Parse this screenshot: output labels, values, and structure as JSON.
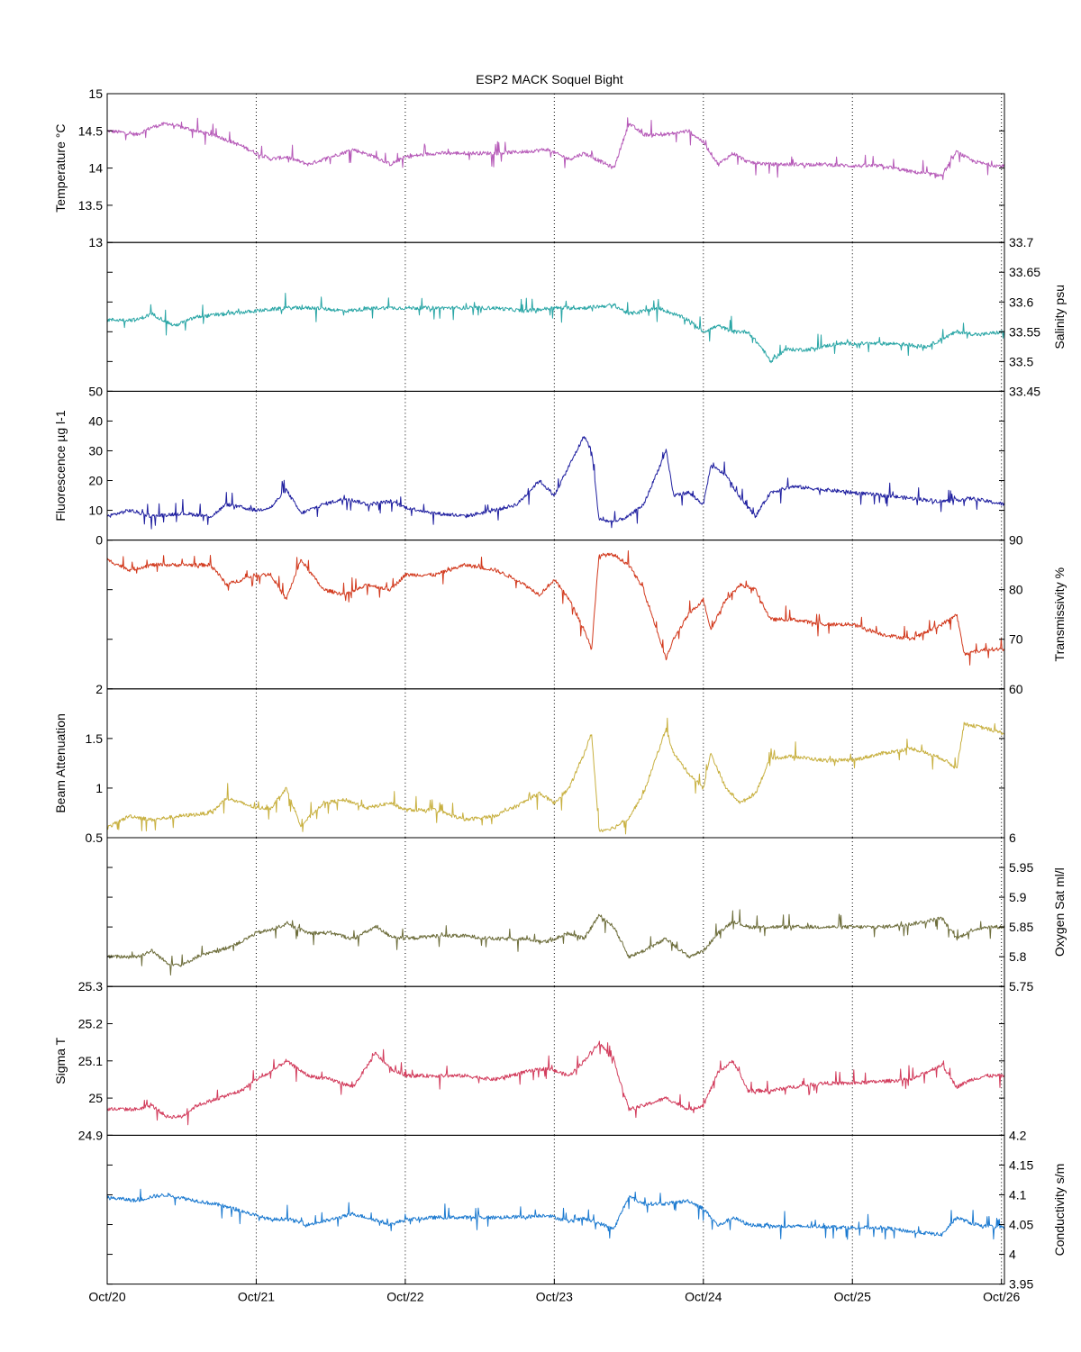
{
  "chart_data": {
    "type": "line",
    "title": "ESP2 MACK  Soquel Bight",
    "x_tick_labels": [
      "Oct/20",
      "Oct/21",
      "Oct/22",
      "Oct/23",
      "Oct/24",
      "Oct/25",
      "Oct/26"
    ],
    "x_ticks": [
      0,
      1,
      2,
      3,
      4,
      5,
      6
    ],
    "xlim": [
      0,
      6.02
    ],
    "x_unit_note": "days from Oct/20 00:00",
    "grid": "vertical dotted at daily ticks",
    "panels": [
      {
        "ylabel": "Temperature °C",
        "axis_side": "left",
        "ylim": [
          13,
          15
        ],
        "ticks": [
          "13",
          "13.5",
          "14",
          "14.5",
          "15"
        ],
        "tick_values": [
          13,
          13.5,
          14,
          14.5,
          15
        ],
        "color": "#b65ab8",
        "series": {
          "x": [
            0,
            0.1,
            0.2,
            0.3,
            0.4,
            0.5,
            0.6,
            0.75,
            0.9,
            1.0,
            1.1,
            1.2,
            1.35,
            1.5,
            1.65,
            1.8,
            1.9,
            2.0,
            2.2,
            2.4,
            2.6,
            2.8,
            2.95,
            3.1,
            3.2,
            3.3,
            3.4,
            3.5,
            3.6,
            3.75,
            3.9,
            4.0,
            4.1,
            4.2,
            4.3,
            4.45,
            4.6,
            4.8,
            5.0,
            5.2,
            5.4,
            5.6,
            5.7,
            5.8,
            5.9,
            6.02
          ],
          "y": [
            14.5,
            14.48,
            14.45,
            14.55,
            14.6,
            14.55,
            14.5,
            14.42,
            14.3,
            14.2,
            14.12,
            14.15,
            14.05,
            14.15,
            14.25,
            14.15,
            14.05,
            14.15,
            14.2,
            14.2,
            14.2,
            14.22,
            14.25,
            14.12,
            14.2,
            14.1,
            14.0,
            14.6,
            14.45,
            14.45,
            14.5,
            14.35,
            14.05,
            14.2,
            14.08,
            14.05,
            14.05,
            14.05,
            14.03,
            14.03,
            13.95,
            13.9,
            14.22,
            14.1,
            14.05,
            14.02
          ]
        }
      },
      {
        "ylabel": "Salinity psu",
        "axis_side": "right",
        "ylim": [
          33.45,
          33.7
        ],
        "ticks": [
          "33.45",
          "33.5",
          "33.55",
          "33.6",
          "33.65",
          "33.7"
        ],
        "tick_values": [
          33.45,
          33.5,
          33.55,
          33.6,
          33.65,
          33.7
        ],
        "color": "#2aa6a6",
        "series": {
          "x": [
            0,
            0.2,
            0.3,
            0.45,
            0.6,
            0.8,
            1.0,
            1.2,
            1.4,
            1.6,
            1.8,
            2.0,
            2.2,
            2.4,
            2.6,
            2.8,
            3.0,
            3.2,
            3.4,
            3.5,
            3.6,
            3.7,
            3.8,
            3.9,
            4.0,
            4.1,
            4.2,
            4.3,
            4.4,
            4.45,
            4.55,
            4.7,
            4.9,
            5.1,
            5.3,
            5.5,
            5.7,
            5.85,
            6.02
          ],
          "y": [
            33.57,
            33.57,
            33.58,
            33.56,
            33.575,
            33.58,
            33.585,
            33.59,
            33.59,
            33.585,
            33.59,
            33.59,
            33.59,
            33.59,
            33.59,
            33.585,
            33.59,
            33.59,
            33.595,
            33.58,
            33.585,
            33.59,
            33.58,
            33.57,
            33.55,
            33.56,
            33.55,
            33.55,
            33.52,
            33.5,
            33.52,
            33.52,
            33.53,
            33.53,
            33.53,
            33.525,
            33.55,
            33.545,
            33.55
          ]
        }
      },
      {
        "ylabel": "Fluorescence µg l-1",
        "axis_side": "left",
        "ylim": [
          0,
          50
        ],
        "ticks": [
          "0",
          "10",
          "20",
          "30",
          "40",
          "50"
        ],
        "tick_values": [
          0,
          10,
          20,
          30,
          40,
          50
        ],
        "color": "#2020a0",
        "series": {
          "x": [
            0,
            0.15,
            0.3,
            0.5,
            0.7,
            0.8,
            1.0,
            1.1,
            1.2,
            1.3,
            1.45,
            1.6,
            1.75,
            1.9,
            2.0,
            2.2,
            2.4,
            2.6,
            2.75,
            2.9,
            3.0,
            3.1,
            3.2,
            3.25,
            3.3,
            3.4,
            3.5,
            3.6,
            3.75,
            3.8,
            3.9,
            4.0,
            4.05,
            4.15,
            4.25,
            4.35,
            4.45,
            4.6,
            4.8,
            5.0,
            5.2,
            5.4,
            5.6,
            5.8,
            6.02
          ],
          "y": [
            8,
            10,
            8,
            9,
            8,
            12,
            10,
            11,
            17,
            9,
            12,
            14,
            12,
            13,
            11,
            9,
            8,
            10,
            12,
            20,
            15,
            25,
            35,
            30,
            7,
            6,
            8,
            12,
            30,
            15,
            16,
            12,
            25,
            22,
            14,
            8,
            16,
            18,
            17,
            16,
            15,
            14,
            13,
            14,
            12
          ]
        }
      },
      {
        "ylabel": "Transmissivity %",
        "axis_side": "right",
        "ylim": [
          60,
          90
        ],
        "ticks": [
          "60",
          "70",
          "80",
          "90"
        ],
        "tick_values": [
          60,
          70,
          80,
          90
        ],
        "color": "#d23a1e",
        "series": {
          "x": [
            0,
            0.15,
            0.3,
            0.5,
            0.7,
            0.8,
            1.0,
            1.1,
            1.2,
            1.3,
            1.45,
            1.6,
            1.75,
            1.9,
            2.0,
            2.2,
            2.4,
            2.6,
            2.75,
            2.9,
            3.0,
            3.1,
            3.2,
            3.25,
            3.3,
            3.4,
            3.5,
            3.6,
            3.75,
            3.8,
            3.9,
            4.0,
            4.05,
            4.15,
            4.25,
            4.35,
            4.45,
            4.6,
            4.8,
            5.0,
            5.2,
            5.4,
            5.6,
            5.7,
            5.75,
            5.9,
            6.02
          ],
          "y": [
            86,
            84,
            85,
            85,
            85,
            81,
            83,
            83,
            78,
            86,
            80,
            79,
            81,
            80,
            83,
            83,
            85,
            84,
            82,
            79,
            82,
            78,
            72,
            68,
            87,
            87,
            85,
            80,
            66,
            70,
            75,
            78,
            72,
            78,
            81,
            80,
            74,
            74,
            73,
            73,
            71,
            70,
            73,
            75,
            67,
            68,
            68
          ]
        }
      },
      {
        "ylabel": "Beam Attenuation",
        "axis_side": "left",
        "ylim": [
          0.5,
          2
        ],
        "ticks": [
          "0.5",
          "1",
          "1.5",
          "2"
        ],
        "tick_values": [
          0.5,
          1,
          1.5,
          2
        ],
        "color": "#c8b040",
        "series": {
          "x": [
            0,
            0.15,
            0.3,
            0.5,
            0.7,
            0.8,
            1.0,
            1.1,
            1.2,
            1.3,
            1.45,
            1.6,
            1.75,
            1.9,
            2.0,
            2.2,
            2.4,
            2.6,
            2.75,
            2.9,
            3.0,
            3.1,
            3.2,
            3.25,
            3.3,
            3.4,
            3.5,
            3.6,
            3.75,
            3.8,
            3.9,
            4.0,
            4.05,
            4.15,
            4.25,
            4.35,
            4.45,
            4.6,
            4.8,
            5.0,
            5.2,
            5.4,
            5.6,
            5.7,
            5.75,
            5.9,
            6.02
          ],
          "y": [
            0.6,
            0.72,
            0.68,
            0.72,
            0.75,
            0.9,
            0.8,
            0.8,
            1.0,
            0.62,
            0.85,
            0.88,
            0.8,
            0.85,
            0.78,
            0.78,
            0.68,
            0.72,
            0.82,
            0.95,
            0.85,
            1.0,
            1.35,
            1.55,
            0.57,
            0.6,
            0.7,
            0.95,
            1.6,
            1.35,
            1.15,
            1.0,
            1.35,
            1.0,
            0.85,
            0.95,
            1.3,
            1.32,
            1.28,
            1.28,
            1.35,
            1.4,
            1.3,
            1.2,
            1.65,
            1.6,
            1.55
          ]
        }
      },
      {
        "ylabel": "Oxygen Sat ml/l",
        "axis_side": "right",
        "ylim": [
          5.75,
          6.0
        ],
        "ticks": [
          "5.75",
          "5.8",
          "5.85",
          "5.9",
          "5.95",
          "6"
        ],
        "tick_values": [
          5.75,
          5.8,
          5.85,
          5.9,
          5.95,
          6.0
        ],
        "color": "#6e6e3c",
        "series": {
          "x": [
            0,
            0.2,
            0.3,
            0.4,
            0.5,
            0.6,
            0.75,
            0.9,
            1.0,
            1.1,
            1.2,
            1.35,
            1.5,
            1.65,
            1.8,
            1.9,
            2.0,
            2.2,
            2.4,
            2.6,
            2.8,
            2.95,
            3.1,
            3.2,
            3.3,
            3.4,
            3.5,
            3.6,
            3.75,
            3.9,
            4.0,
            4.1,
            4.2,
            4.3,
            4.45,
            4.6,
            4.8,
            5.0,
            5.2,
            5.4,
            5.6,
            5.7,
            5.8,
            5.9,
            6.02
          ],
          "y": [
            5.8,
            5.8,
            5.81,
            5.79,
            5.785,
            5.8,
            5.81,
            5.825,
            5.84,
            5.845,
            5.855,
            5.84,
            5.84,
            5.83,
            5.85,
            5.835,
            5.83,
            5.835,
            5.835,
            5.83,
            5.83,
            5.825,
            5.84,
            5.83,
            5.87,
            5.85,
            5.8,
            5.81,
            5.83,
            5.8,
            5.81,
            5.84,
            5.86,
            5.85,
            5.85,
            5.85,
            5.85,
            5.85,
            5.85,
            5.855,
            5.865,
            5.83,
            5.845,
            5.85,
            5.85
          ]
        }
      },
      {
        "ylabel": "Sigma T",
        "axis_side": "left",
        "ylim": [
          24.9,
          25.3
        ],
        "ticks": [
          "24.9",
          "25",
          "25.1",
          "25.2",
          "25.3"
        ],
        "tick_values": [
          24.9,
          25.0,
          25.1,
          25.2,
          25.3
        ],
        "color": "#d23c5c",
        "series": {
          "x": [
            0,
            0.2,
            0.3,
            0.4,
            0.5,
            0.6,
            0.75,
            0.9,
            1.0,
            1.1,
            1.2,
            1.35,
            1.5,
            1.65,
            1.8,
            1.9,
            2.0,
            2.2,
            2.4,
            2.6,
            2.8,
            2.95,
            3.1,
            3.2,
            3.3,
            3.4,
            3.5,
            3.6,
            3.75,
            3.9,
            4.0,
            4.1,
            4.2,
            4.3,
            4.45,
            4.6,
            4.8,
            5.0,
            5.2,
            5.4,
            5.6,
            5.7,
            5.8,
            5.9,
            6.02
          ],
          "y": [
            24.97,
            24.97,
            24.98,
            24.95,
            24.95,
            24.98,
            25.0,
            25.02,
            25.05,
            25.07,
            25.1,
            25.06,
            25.05,
            25.03,
            25.12,
            25.08,
            25.06,
            25.06,
            25.06,
            25.05,
            25.07,
            25.08,
            25.06,
            25.1,
            25.15,
            25.1,
            24.97,
            24.98,
            25.0,
            24.97,
            24.98,
            25.07,
            25.1,
            25.02,
            25.02,
            25.03,
            25.04,
            25.04,
            25.045,
            25.05,
            25.09,
            25.03,
            25.05,
            25.06,
            25.06
          ]
        }
      },
      {
        "ylabel": "Conductivity s/m",
        "axis_side": "right",
        "ylim": [
          3.95,
          4.2
        ],
        "ticks": [
          "3.95",
          "4",
          "4.05",
          "4.1",
          "4.15",
          "4.2"
        ],
        "tick_values": [
          3.95,
          4.0,
          4.05,
          4.1,
          4.15,
          4.2
        ],
        "color": "#1c7ad0",
        "series": {
          "x": [
            0,
            0.1,
            0.2,
            0.3,
            0.4,
            0.5,
            0.6,
            0.75,
            0.9,
            1.0,
            1.1,
            1.2,
            1.35,
            1.5,
            1.65,
            1.8,
            1.9,
            2.0,
            2.2,
            2.4,
            2.6,
            2.8,
            2.95,
            3.1,
            3.2,
            3.3,
            3.4,
            3.5,
            3.6,
            3.75,
            3.9,
            4.0,
            4.1,
            4.2,
            4.3,
            4.45,
            4.6,
            4.8,
            5.0,
            5.2,
            5.4,
            5.6,
            5.7,
            5.8,
            5.9,
            6.02
          ],
          "y": [
            4.095,
            4.093,
            4.09,
            4.097,
            4.1,
            4.095,
            4.09,
            4.083,
            4.073,
            4.065,
            4.058,
            4.06,
            4.05,
            4.058,
            4.068,
            4.058,
            4.05,
            4.058,
            4.062,
            4.062,
            4.062,
            4.063,
            4.066,
            4.055,
            4.06,
            4.052,
            4.043,
            4.097,
            4.085,
            4.085,
            4.09,
            4.077,
            4.048,
            4.062,
            4.05,
            4.047,
            4.047,
            4.047,
            4.045,
            4.045,
            4.038,
            4.033,
            4.062,
            4.052,
            4.047,
            4.045
          ]
        }
      }
    ]
  }
}
